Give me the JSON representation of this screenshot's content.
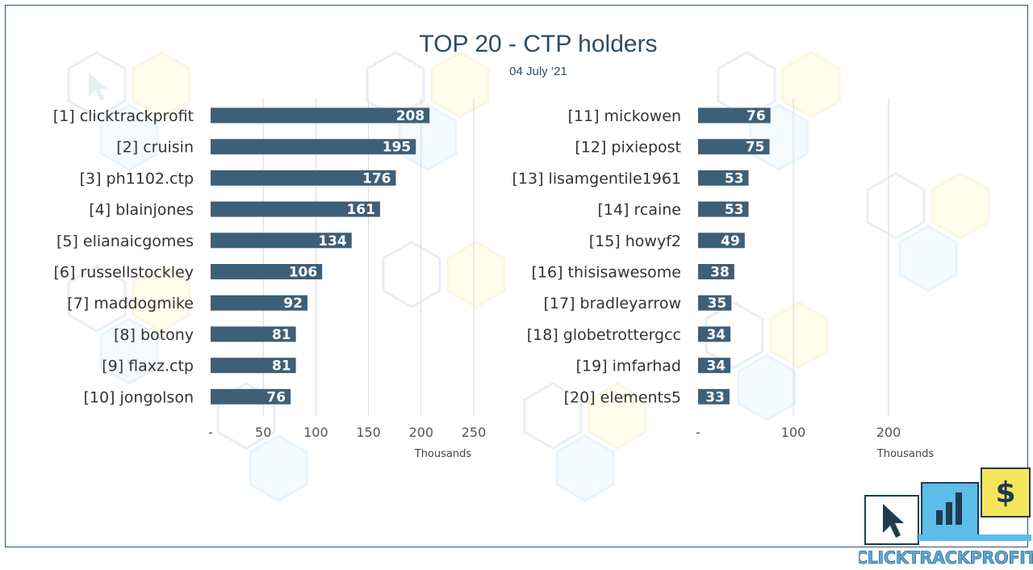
{
  "title": "TOP 20 - CTP holders",
  "subtitle": "04 July ‘21",
  "colors": {
    "bar": "#3e5f78",
    "grid": "#d9d9d9",
    "title": "#2e4d66"
  },
  "logo": {
    "text": "CLICKTRACKPROFIT",
    "dollar_glyph": "$"
  },
  "chart_data": [
    {
      "type": "bar",
      "orientation": "horizontal",
      "categories": [
        "[1] clicktrackprofit",
        "[2] cruisin",
        "[3] ph1102.ctp",
        "[4] blainjones",
        "[5] elianaicgomes",
        "[6] russellstockley",
        "[7] maddogmike",
        "[8] botony",
        "[9] flaxz.ctp",
        "[10] jongolson"
      ],
      "values": [
        208,
        195,
        176,
        161,
        134,
        106,
        92,
        81,
        81,
        76
      ],
      "value_labels": [
        "208",
        "195",
        "176",
        "161",
        "134",
        "106",
        "92",
        "81",
        "81",
        "76"
      ],
      "xlim": [
        0,
        250
      ],
      "ticks": [
        0,
        50,
        100,
        150,
        200,
        250
      ],
      "tick_labels": [
        "-",
        "50",
        "100",
        "150",
        "200",
        "250"
      ],
      "unit_label": "Thousands",
      "grid": true
    },
    {
      "type": "bar",
      "orientation": "horizontal",
      "categories": [
        "[11] mickowen",
        "[12] pixiepost",
        "[13] lisamgentile1961",
        "[14] rcaine",
        "[15] howyf2",
        "[16] thisisawesome",
        "[17] bradleyarrow",
        "[18] globetrottergcc",
        "[19] imfarhad",
        "[20] elements5"
      ],
      "values": [
        76,
        75,
        53,
        53,
        49,
        38,
        35,
        34,
        34,
        33
      ],
      "value_labels": [
        "76",
        "75",
        "53",
        "53",
        "49",
        "38",
        "35",
        "34",
        "34",
        "33"
      ],
      "xlim": [
        0,
        200
      ],
      "ticks": [
        0,
        100,
        200
      ],
      "tick_labels": [
        "-",
        "100",
        "200"
      ],
      "unit_label": "Thousands",
      "grid": true
    }
  ]
}
